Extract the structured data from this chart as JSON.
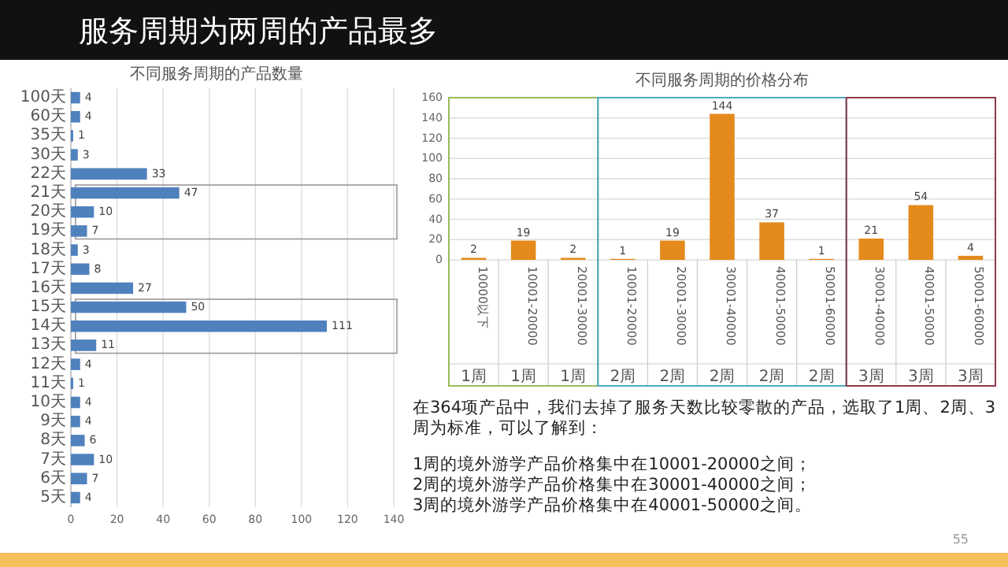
{
  "chart_data": [
    {
      "type": "other",
      "title": "服务周期为两周的产品最多",
      "annotations": [
        "在364项产品中，我们去掉了服务天数比较零散的产品，选取了1周、2周、3周为标准，可以了解到：",
        "1周的境外游学产品价格集中在10001-20000之间；",
        "2周的境外游学产品价格集中在30001-40000之间；",
        "3周的境外游学产品价格集中在40001-50000之间。",
        "55"
      ]
    },
    {
      "type": "bar",
      "orientation": "horizontal",
      "title": "不同服务周期的产品数量",
      "categories": [
        "100天",
        "60天",
        "35天",
        "30天",
        "22天",
        "21天",
        "20天",
        "19天",
        "18天",
        "17天",
        "16天",
        "15天",
        "14天",
        "13天",
        "12天",
        "11天",
        "10天",
        "9天",
        "8天",
        "7天",
        "6天",
        "5天"
      ],
      "values": [
        4,
        4,
        1,
        3,
        33,
        47,
        10,
        7,
        3,
        8,
        27,
        50,
        111,
        11,
        4,
        1,
        4,
        4,
        6,
        10,
        7,
        4
      ],
      "color": "#4f81bd",
      "xlim": [
        0,
        140
      ],
      "xticks": [
        0,
        20,
        40,
        60,
        80,
        100,
        120,
        140
      ],
      "grid": "x",
      "data_labels": true
    },
    {
      "type": "bar",
      "title": "不同服务周期的价格分布",
      "categories": [
        "10000以下",
        "10001-20000",
        "20001-30000",
        "10001-20000",
        "20001-30000",
        "30001-40000",
        "40001-50000",
        "50001-60000",
        "30001-40000",
        "40001-50000",
        "50001-60000"
      ],
      "values": [
        2,
        19,
        2,
        1,
        19,
        144,
        37,
        1,
        21,
        54,
        4
      ],
      "color": "#e48a1c",
      "ylim": [
        0,
        160
      ],
      "yticks": [
        0,
        20,
        40,
        60,
        80,
        100,
        120,
        140,
        160
      ],
      "grid": "y",
      "data_labels": true,
      "annotations": [
        "1周",
        "1周",
        "1周",
        "2周",
        "2周",
        "2周",
        "2周",
        "2周",
        "3周",
        "3周",
        "3周"
      ]
    }
  ]
}
